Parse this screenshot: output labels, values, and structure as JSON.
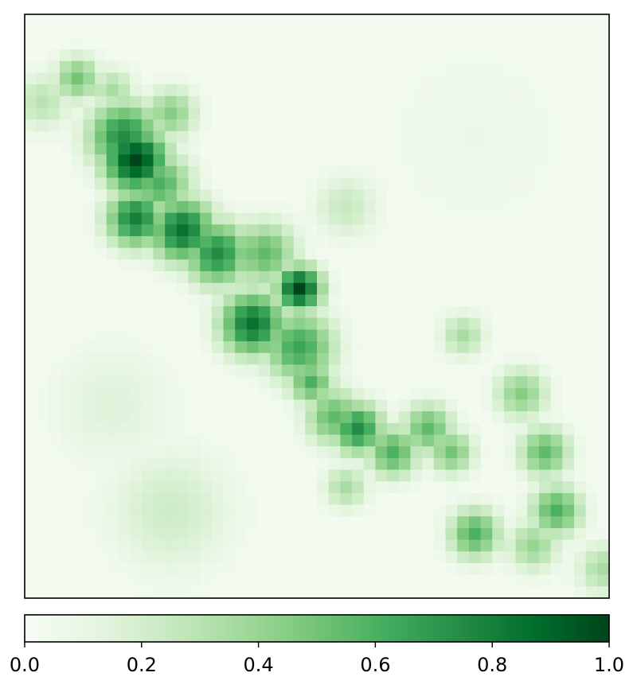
{
  "chart_data": {
    "type": "heatmap",
    "title": "",
    "xlabel": "",
    "ylabel": "",
    "grid": false,
    "axes_ticks": false,
    "colormap": "Greens",
    "value_range": [
      0.0,
      1.0
    ],
    "grid_shape": [
      50,
      50
    ],
    "colorbar": {
      "orientation": "horizontal",
      "placement": "bottom",
      "ticks": [
        0.0,
        0.2,
        0.4,
        0.6,
        0.8,
        1.0
      ],
      "tick_labels": [
        "0.0",
        "0.2",
        "0.4",
        "0.6",
        "0.8",
        "1.0"
      ]
    },
    "hotspots": [
      {
        "row": 12,
        "col": 9,
        "value": 1.0,
        "spread": 2.0
      },
      {
        "row": 10,
        "col": 8,
        "value": 0.75,
        "spread": 2.2
      },
      {
        "row": 14,
        "col": 11,
        "value": 0.6,
        "spread": 2.0
      },
      {
        "row": 8,
        "col": 12,
        "value": 0.45,
        "spread": 1.6
      },
      {
        "row": 17,
        "col": 9,
        "value": 0.8,
        "spread": 1.8
      },
      {
        "row": 18,
        "col": 13,
        "value": 0.85,
        "spread": 2.0
      },
      {
        "row": 20,
        "col": 16,
        "value": 0.75,
        "spread": 2.0
      },
      {
        "row": 20,
        "col": 20,
        "value": 0.55,
        "spread": 2.0
      },
      {
        "row": 23,
        "col": 23,
        "value": 1.0,
        "spread": 1.4
      },
      {
        "row": 26,
        "col": 19,
        "value": 0.85,
        "spread": 2.0
      },
      {
        "row": 28,
        "col": 23,
        "value": 0.65,
        "spread": 2.2
      },
      {
        "row": 31,
        "col": 24,
        "value": 0.6,
        "spread": 1.4
      },
      {
        "row": 34,
        "col": 26,
        "value": 0.55,
        "spread": 1.8
      },
      {
        "row": 35,
        "col": 28,
        "value": 0.75,
        "spread": 1.6
      },
      {
        "row": 37,
        "col": 31,
        "value": 0.6,
        "spread": 1.6
      },
      {
        "row": 35,
        "col": 34,
        "value": 0.55,
        "spread": 1.6
      },
      {
        "row": 37,
        "col": 36,
        "value": 0.5,
        "spread": 1.4
      },
      {
        "row": 32,
        "col": 42,
        "value": 0.45,
        "spread": 1.6
      },
      {
        "row": 37,
        "col": 44,
        "value": 0.55,
        "spread": 1.6
      },
      {
        "row": 42,
        "col": 45,
        "value": 0.6,
        "spread": 1.6
      },
      {
        "row": 44,
        "col": 38,
        "value": 0.6,
        "spread": 1.6
      },
      {
        "row": 45,
        "col": 43,
        "value": 0.4,
        "spread": 1.6
      },
      {
        "row": 5,
        "col": 4,
        "value": 0.5,
        "spread": 1.4
      },
      {
        "row": 7,
        "col": 1,
        "value": 0.3,
        "spread": 1.8
      },
      {
        "row": 6,
        "col": 7,
        "value": 0.35,
        "spread": 1.4
      },
      {
        "row": 27,
        "col": 37,
        "value": 0.35,
        "spread": 1.4
      },
      {
        "row": 40,
        "col": 27,
        "value": 0.35,
        "spread": 1.4
      },
      {
        "row": 47,
        "col": 49,
        "value": 0.35,
        "spread": 1.6
      },
      {
        "row": 42,
        "col": 12,
        "value": 0.22,
        "spread": 4.0
      },
      {
        "row": 33,
        "col": 7,
        "value": 0.15,
        "spread": 4.0
      },
      {
        "row": 10,
        "col": 38,
        "value": 0.08,
        "spread": 6.0
      },
      {
        "row": 16,
        "col": 27,
        "value": 0.25,
        "spread": 2.0
      }
    ],
    "background_level": 0.03
  }
}
